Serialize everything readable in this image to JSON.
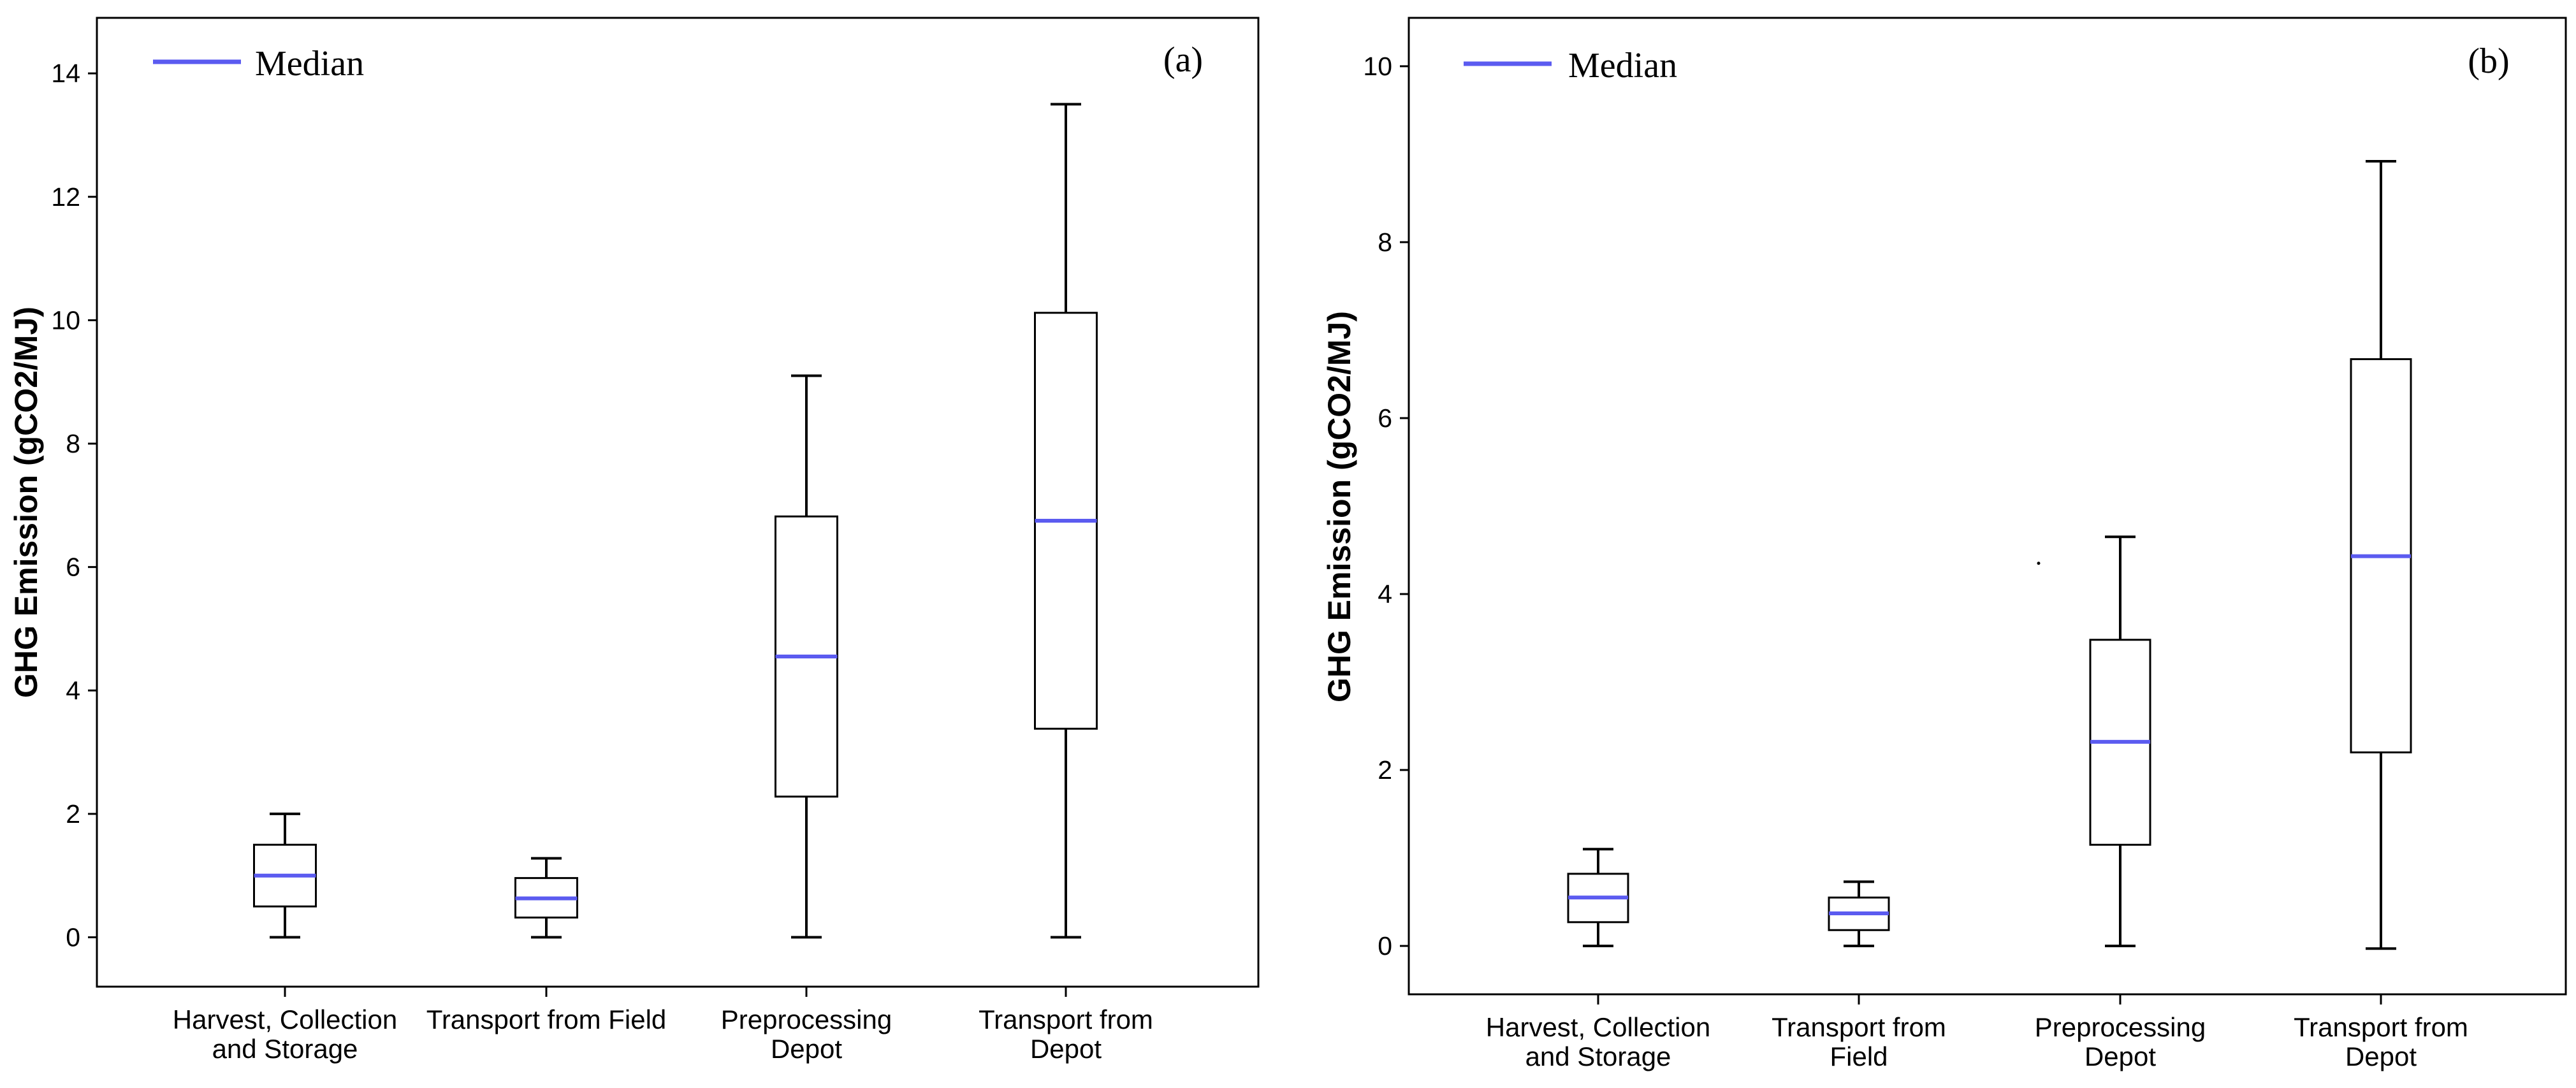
{
  "chart_data": [
    {
      "type": "boxplot",
      "panel_label": "(a)",
      "ylabel": "GHG Emission (gCO2/MJ)",
      "xlabel": "",
      "ylim": [
        -0.8,
        14.9
      ],
      "yticks": [
        0,
        2,
        4,
        6,
        8,
        10,
        12,
        14
      ],
      "legend": {
        "label": "Median",
        "color": "#5b5bf0",
        "position": "top-left"
      },
      "grid": false,
      "categories": [
        [
          "Harvest, Collection",
          "and Storage"
        ],
        [
          "Transport from Field"
        ],
        [
          "Preprocessing",
          "Depot"
        ],
        [
          "Transport from",
          "Depot"
        ]
      ],
      "boxes": [
        {
          "min": 0.0,
          "q1": 0.5,
          "median": 1.0,
          "q3": 1.5,
          "max": 2.0
        },
        {
          "min": 0.0,
          "q1": 0.32,
          "median": 0.63,
          "q3": 0.96,
          "max": 1.28
        },
        {
          "min": 0.0,
          "q1": 2.28,
          "median": 4.55,
          "q3": 6.82,
          "max": 9.1
        },
        {
          "min": 0.0,
          "q1": 3.38,
          "median": 6.75,
          "q3": 10.12,
          "max": 13.5
        }
      ],
      "outliers": []
    },
    {
      "type": "boxplot",
      "panel_label": "(b)",
      "ylabel": "GHG Emission (gCO2/MJ)",
      "xlabel": "",
      "ylim": [
        -0.55,
        10.55
      ],
      "yticks": [
        0,
        2,
        4,
        6,
        8,
        10
      ],
      "legend": {
        "label": "Median",
        "color": "#5b5bf0",
        "position": "top-left"
      },
      "grid": false,
      "categories": [
        [
          "Harvest, Collection",
          "and Storage"
        ],
        [
          "Transport from",
          "Field"
        ],
        [
          "Preprocessing",
          "Depot"
        ],
        [
          "Transport from",
          "Depot"
        ]
      ],
      "boxes": [
        {
          "min": 0.0,
          "q1": 0.27,
          "median": 0.55,
          "q3": 0.82,
          "max": 1.1
        },
        {
          "min": 0.0,
          "q1": 0.18,
          "median": 0.37,
          "q3": 0.55,
          "max": 0.73
        },
        {
          "min": 0.0,
          "q1": 1.15,
          "median": 2.32,
          "q3": 3.48,
          "max": 4.65
        },
        {
          "min": -0.03,
          "q1": 2.2,
          "median": 4.43,
          "q3": 6.67,
          "max": 8.92
        }
      ],
      "outliers": [
        {
          "category_index": 2,
          "value": 4.35
        }
      ]
    }
  ]
}
